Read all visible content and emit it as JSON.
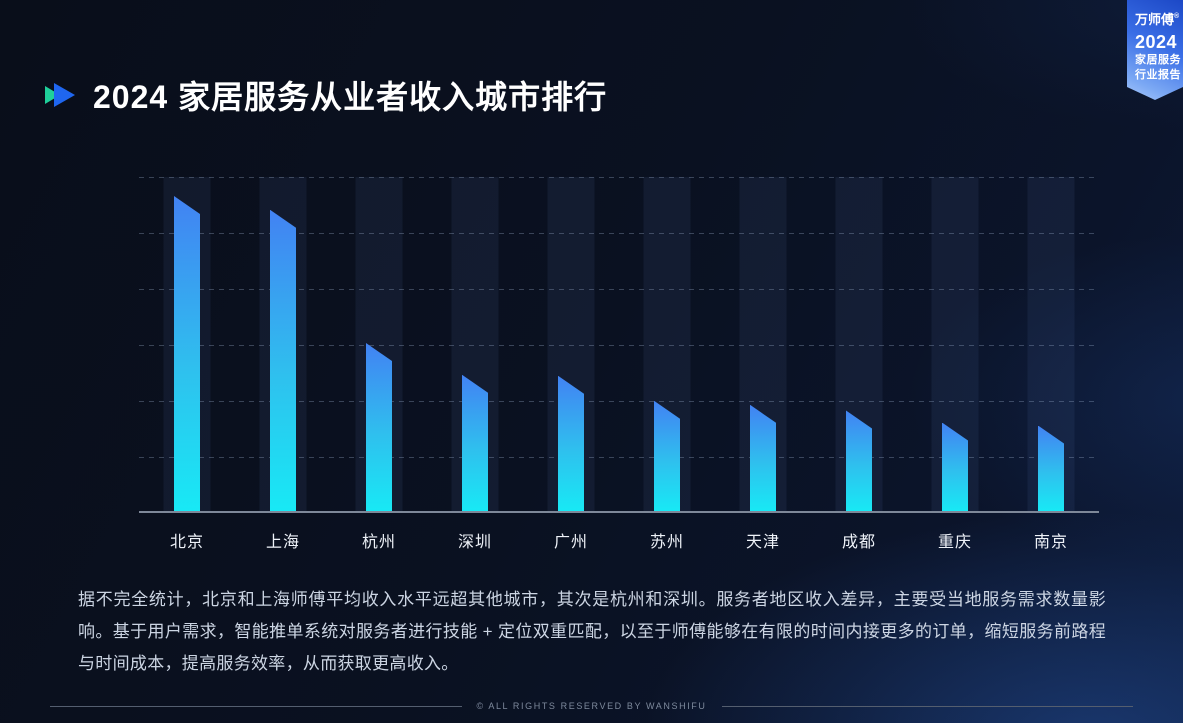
{
  "header": {
    "title": "2024 家居服务从业者收入城市排行"
  },
  "ribbon": {
    "brand": "万师傅",
    "reg_mark": "®",
    "year": "2024",
    "line1": "家居服务",
    "line2": "行业报告"
  },
  "chart_data": {
    "type": "bar",
    "title": "2024 家居服务从业者收入城市排行",
    "categories": [
      "北京",
      "上海",
      "杭州",
      "深圳",
      "广州",
      "苏州",
      "天津",
      "成都",
      "重庆",
      "南京"
    ],
    "values_relative": [
      5.66,
      5.41,
      3.02,
      2.45,
      2.43,
      1.98,
      1.91,
      1.8,
      1.59,
      1.54
    ],
    "bar_height_pct": [
      94.3,
      90.2,
      50.3,
      40.8,
      40.5,
      33.0,
      31.8,
      30.1,
      26.5,
      25.6
    ],
    "xlabel": "",
    "ylabel": "",
    "y_axis_labeled": false,
    "gridline_count": 6,
    "grid_style": "dashed horizontal",
    "legend_position": "none",
    "note": "柱状图无数值轴标注；values_relative 以一格网格线间距为 1 个单位估算",
    "bar_gradient": [
      "#4282f3",
      "#2fc0ee",
      "#18e9f5"
    ]
  },
  "paragraph": {
    "text": "据不完全统计，北京和上海师傅平均收入水平远超其他城市，其次是杭州和深圳。服务者地区收入差异，主要受当地服务需求数量影响。基于用户需求，智能推单系统对服务者进行技能 + 定位双重匹配，以至于师傅能够在有限的时间内接更多的订单，缩短服务前路程与时间成本，提高服务效率，从而获取更高收入。"
  },
  "footer": {
    "copyright": "© ALL RIGHTS RESERVED BY WANSHIFU"
  },
  "colors": {
    "background": "#0a1020",
    "bar_top": "#4282f3",
    "bar_bottom": "#18e9f5",
    "marker_green": "#1fcf9a",
    "marker_blue": "#1f66f0",
    "ribbon_blue": "#2e66e0",
    "paragraph_text": "#ccd5e3",
    "axis_line": "#7e8899"
  }
}
